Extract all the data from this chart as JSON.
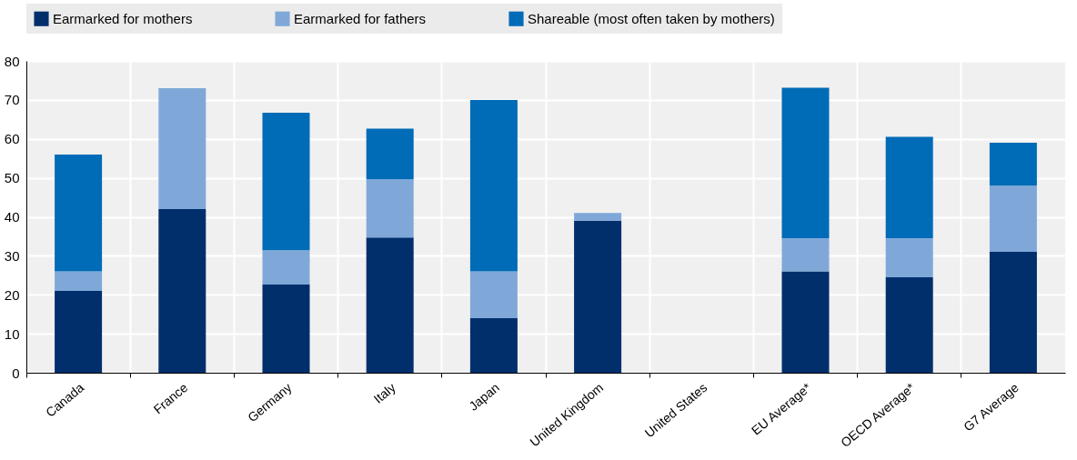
{
  "chart_data": {
    "type": "bar",
    "stacked": true,
    "categories": [
      "Canada",
      "France",
      "Germany",
      "Italy",
      "Japan",
      "United Kingdom",
      "United States",
      "EU Average*",
      "OECD Average*",
      "G7 Average"
    ],
    "series": [
      {
        "name": "Earmarked for mothers",
        "color": "#002f6c",
        "values": [
          21,
          42,
          22.6,
          34.7,
          14,
          39,
          null,
          26,
          24.5,
          31
        ]
      },
      {
        "name": "Earmarked for fathers",
        "color": "#7fa8d9",
        "values": [
          5,
          31,
          8.8,
          14.9,
          12,
          2,
          null,
          8.5,
          10,
          17
        ]
      },
      {
        "name": "Shareable (most often taken by mothers)",
        "color": "#006bb6",
        "values": [
          30,
          null,
          35.3,
          13,
          44,
          null,
          null,
          38.6,
          26,
          11
        ]
      }
    ],
    "ylim": [
      0,
      80
    ],
    "yticks": [
      0,
      10,
      20,
      30,
      40,
      50,
      60,
      70,
      80
    ],
    "grid": true,
    "legend": "top"
  }
}
